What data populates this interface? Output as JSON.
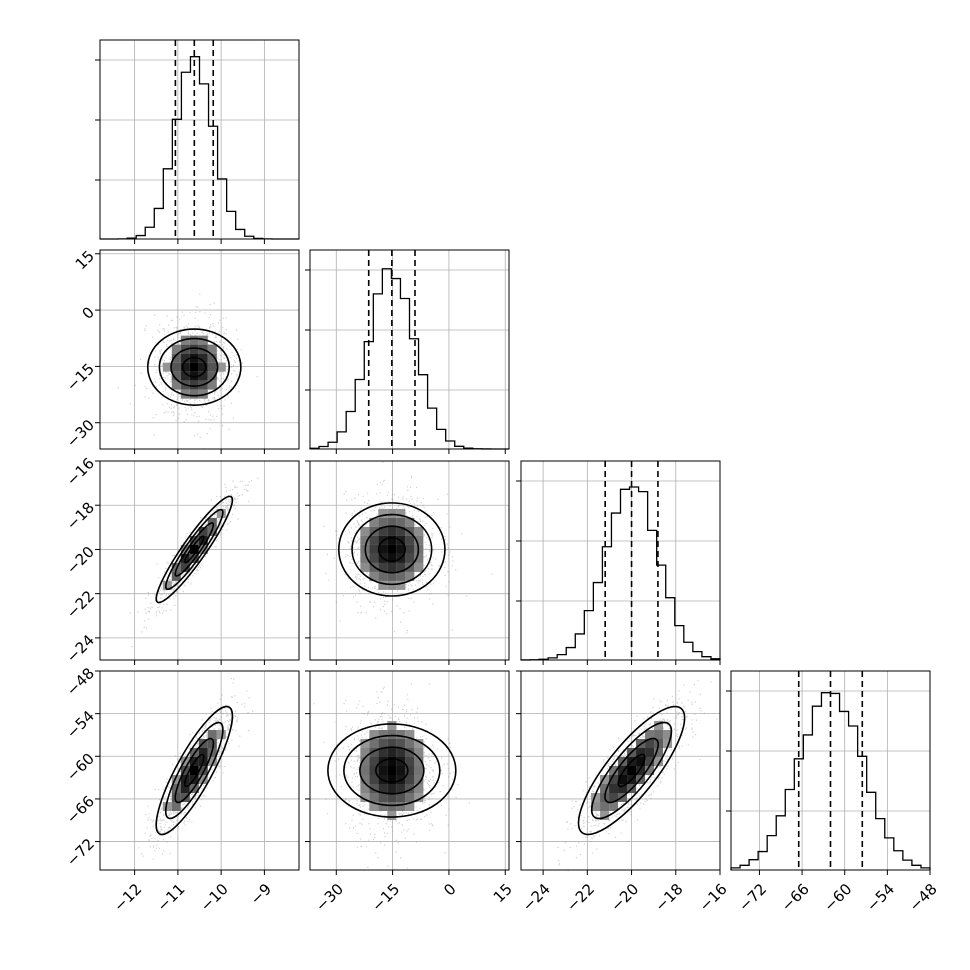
{
  "chart_data": {
    "type": "corner",
    "grid": true,
    "contour_levels": 4,
    "quantile_lines": [
      0.16,
      0.5,
      0.84
    ],
    "colors": {
      "line": "#000000",
      "grid": "#b0b0b0",
      "scatter": "#9a9a9a",
      "density": "#000000"
    },
    "params": [
      {
        "mean": -10.62,
        "std": 0.44,
        "range": [
          -12.8,
          -8.2
        ],
        "ticks": [
          -12,
          -11,
          -10,
          -9
        ],
        "tick_labels": [
          "−12",
          "−11",
          "−10",
          "−9"
        ]
      },
      {
        "mean": -15.2,
        "std": 6.2,
        "range": [
          -37,
          16
        ],
        "ticks": [
          -30,
          -15,
          0,
          15
        ],
        "tick_labels": [
          "−30",
          "−15",
          "0",
          "15"
        ]
      },
      {
        "mean": -20.0,
        "std": 1.2,
        "range": [
          -25.0,
          -16.0
        ],
        "ticks": [
          -24,
          -22,
          -20,
          -18,
          -16
        ],
        "tick_labels": [
          "−24",
          "−22",
          "−20",
          "−18",
          "−16"
        ]
      },
      {
        "mean": -62.0,
        "std": 4.5,
        "range": [
          -76,
          -48
        ],
        "ticks": [
          -72,
          -66,
          -60,
          -54,
          -48
        ],
        "tick_labels": [
          "−72",
          "−66",
          "−60",
          "−54",
          "−48"
        ]
      }
    ],
    "correlations": [
      [
        1,
        0,
        0.93,
        0.85
      ],
      [
        0,
        1,
        0,
        0
      ],
      [
        0.93,
        0,
        1,
        0.82
      ],
      [
        0.85,
        0,
        0.82,
        1
      ]
    ],
    "y_tick_labels": {
      "1": [
        "15",
        "0",
        "−15",
        "−30"
      ],
      "2": [
        "−16",
        "−18",
        "−20",
        "−22",
        "−24"
      ],
      "3": [
        "−48",
        "−54",
        "−60",
        "−66",
        "−72"
      ]
    },
    "y_tick_values": {
      "1": [
        15,
        0,
        -15,
        -30
      ],
      "2": [
        -16,
        -18,
        -20,
        -22,
        -24
      ],
      "3": [
        -48,
        -54,
        -60,
        -66,
        -72
      ]
    }
  }
}
